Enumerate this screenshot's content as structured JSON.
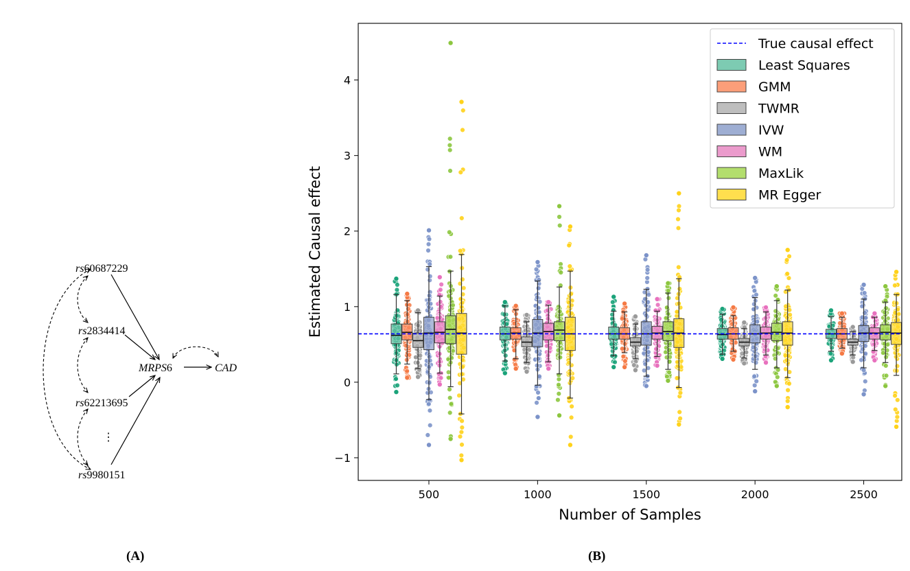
{
  "panel_a": {
    "label": "(A)",
    "nodes": {
      "rs1": {
        "prefix": "rs",
        "num": "60687229"
      },
      "rs2": {
        "prefix": "rs",
        "num": "2834414"
      },
      "rs3": {
        "prefix": "rs",
        "num": "62213695"
      },
      "rs4": {
        "prefix": "rs",
        "num": "9980151"
      },
      "mrps": {
        "italic": "MRPS",
        "num": "6"
      },
      "cad": {
        "italic": "CAD"
      },
      "ellipsis": "⋮"
    }
  },
  "panel_b": {
    "label": "(B)"
  },
  "chart_data": {
    "type": "box",
    "xlabel": "Number of Samples",
    "ylabel": "Estimated Causal effect",
    "categories": [
      "500",
      "1000",
      "1500",
      "2000",
      "2500"
    ],
    "xlim": [
      0.35,
      5.35
    ],
    "ylim": [
      -1.3,
      4.75
    ],
    "yticks": [
      -1,
      0,
      1,
      2,
      3,
      4
    ],
    "ytick_labels": [
      "−1",
      "0",
      "1",
      "2",
      "3",
      "4"
    ],
    "true_effect": 0.64,
    "reference_line": {
      "label": "True causal effect",
      "color": "#0000ff",
      "style": "dashed"
    },
    "legend_position": "top-right",
    "series": [
      {
        "name": "Least Squares",
        "color": "#66c2a5",
        "point_color": "#1ba37a",
        "stats": [
          [
            0.11,
            0.51,
            0.62,
            0.77,
            1.16
          ],
          [
            0.28,
            0.56,
            0.64,
            0.73,
            1.01
          ],
          [
            0.35,
            0.57,
            0.64,
            0.73,
            0.94
          ],
          [
            0.37,
            0.57,
            0.63,
            0.71,
            0.9
          ],
          [
            0.41,
            0.58,
            0.64,
            0.7,
            0.87
          ]
        ],
        "extremes": [
          [
            -0.13,
            1.37
          ],
          [
            0.12,
            1.06
          ],
          [
            0.2,
            1.13
          ],
          [
            0.31,
            0.97
          ],
          [
            0.29,
            0.95
          ]
        ]
      },
      {
        "name": "GMM",
        "color": "#fc8d62",
        "point_color": "#f57a45",
        "stats": [
          [
            0.24,
            0.56,
            0.66,
            0.77,
            1.08
          ],
          [
            0.31,
            0.57,
            0.65,
            0.72,
            0.96
          ],
          [
            0.39,
            0.57,
            0.64,
            0.72,
            0.93
          ],
          [
            0.41,
            0.57,
            0.64,
            0.72,
            0.88
          ],
          [
            0.45,
            0.57,
            0.64,
            0.71,
            0.86
          ]
        ],
        "extremes": [
          [
            0.06,
            1.17
          ],
          [
            0.18,
            1.01
          ],
          [
            0.2,
            1.04
          ],
          [
            0.3,
            0.99
          ],
          [
            0.38,
            0.91
          ]
        ]
      },
      {
        "name": "TWMR",
        "color": "#b3b3b3",
        "point_color": "#9a9a9a",
        "stats": [
          [
            0.18,
            0.46,
            0.55,
            0.65,
            0.92
          ],
          [
            0.26,
            0.47,
            0.53,
            0.6,
            0.8
          ],
          [
            0.31,
            0.48,
            0.53,
            0.59,
            0.77
          ],
          [
            0.32,
            0.48,
            0.53,
            0.58,
            0.71
          ],
          [
            0.36,
            0.49,
            0.53,
            0.57,
            0.67
          ]
        ],
        "extremes": [
          [
            0.07,
            0.95
          ],
          [
            0.14,
            0.89
          ],
          [
            0.16,
            0.87
          ],
          [
            0.25,
            0.79
          ],
          [
            0.27,
            0.73
          ]
        ]
      },
      {
        "name": "IVW",
        "color": "#8da0cb",
        "point_color": "#7c93c9",
        "stats": [
          [
            -0.23,
            0.43,
            0.65,
            0.86,
            1.53
          ],
          [
            -0.04,
            0.47,
            0.65,
            0.83,
            1.34
          ],
          [
            0.08,
            0.49,
            0.64,
            0.8,
            1.23
          ],
          [
            0.17,
            0.52,
            0.64,
            0.76,
            1.12
          ],
          [
            0.19,
            0.54,
            0.65,
            0.75,
            1.1
          ]
        ],
        "extremes": [
          [
            -0.83,
            2.01
          ],
          [
            -0.46,
            1.59
          ],
          [
            -0.05,
            1.68
          ],
          [
            -0.12,
            1.38
          ],
          [
            -0.16,
            1.29
          ]
        ]
      },
      {
        "name": "WM",
        "color": "#e78ac3",
        "point_color": "#e871be",
        "stats": [
          [
            0.12,
            0.52,
            0.66,
            0.8,
            1.14
          ],
          [
            0.27,
            0.56,
            0.67,
            0.78,
            1.02
          ],
          [
            0.34,
            0.57,
            0.65,
            0.74,
            0.94
          ],
          [
            0.36,
            0.57,
            0.65,
            0.73,
            0.93
          ],
          [
            0.42,
            0.57,
            0.65,
            0.72,
            0.86
          ]
        ],
        "extremes": [
          [
            -0.03,
            1.39
          ],
          [
            0.18,
            1.06
          ],
          [
            0.22,
            1.1
          ],
          [
            0.26,
            0.99
          ],
          [
            0.29,
            0.91
          ]
        ]
      },
      {
        "name": "MaxLik",
        "color": "#a6d854",
        "point_color": "#8cc63f",
        "stats": [
          [
            -0.06,
            0.51,
            0.7,
            0.88,
            1.47
          ],
          [
            0.11,
            0.55,
            0.69,
            0.8,
            1.26
          ],
          [
            0.17,
            0.55,
            0.67,
            0.8,
            1.18
          ],
          [
            0.19,
            0.55,
            0.66,
            0.78,
            1.08
          ],
          [
            0.26,
            0.56,
            0.66,
            0.76,
            1.06
          ]
        ],
        "extremes": [
          [
            -0.75,
            4.49
          ],
          [
            -0.44,
            2.33
          ],
          [
            0.02,
            1.31
          ],
          [
            -0.05,
            1.27
          ],
          [
            -0.05,
            1.27
          ]
        ]
      },
      {
        "name": "MR Egger",
        "color": "#ffd92f",
        "point_color": "#ffd21a",
        "stats": [
          [
            -0.42,
            0.37,
            0.65,
            0.91,
            1.69
          ],
          [
            -0.21,
            0.42,
            0.64,
            0.86,
            1.47
          ],
          [
            -0.07,
            0.46,
            0.65,
            0.84,
            1.37
          ],
          [
            0.06,
            0.49,
            0.65,
            0.8,
            1.22
          ],
          [
            0.09,
            0.5,
            0.65,
            0.79,
            1.16
          ]
        ],
        "extremes": [
          [
            -1.03,
            3.71
          ],
          [
            -0.83,
            2.06
          ],
          [
            -0.56,
            2.5
          ],
          [
            -0.33,
            1.75
          ],
          [
            -0.59,
            1.46
          ]
        ]
      }
    ]
  }
}
